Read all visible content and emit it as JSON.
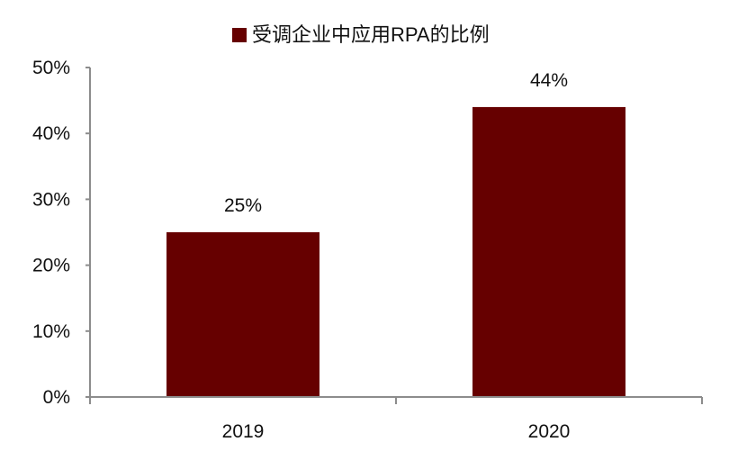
{
  "chart_data": {
    "type": "bar",
    "categories": [
      "2019",
      "2020"
    ],
    "series": [
      {
        "name": "受调企业中应用RPA的比例",
        "values": [
          25,
          44
        ],
        "color": "#660000"
      }
    ],
    "data_labels": [
      "25%",
      "44%"
    ],
    "ylim": [
      0,
      50
    ],
    "yticks": [
      0,
      10,
      20,
      30,
      40,
      50
    ],
    "ytick_labels": [
      "0%",
      "10%",
      "20%",
      "30%",
      "40%",
      "50%"
    ],
    "xlabel": "",
    "ylabel": "",
    "grid": false,
    "legend_position": "top-center"
  }
}
